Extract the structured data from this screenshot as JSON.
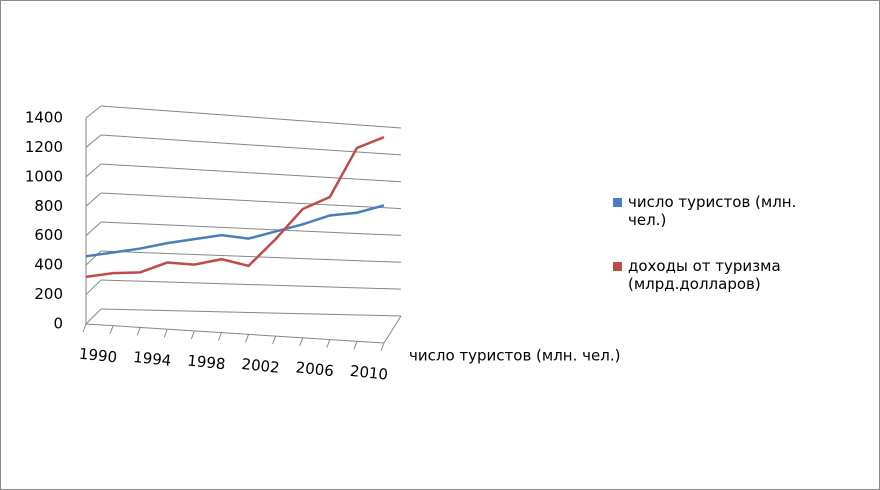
{
  "chart_data": {
    "type": "line",
    "categories": [
      "1990",
      null,
      "1994",
      null,
      "1998",
      null,
      "2002",
      null,
      "2006",
      null,
      "2010",
      null
    ],
    "series": [
      {
        "name": "число туристов (млн. чел.)",
        "color": "#4a7ebb",
        "values": [
          460,
          490,
          520,
          560,
          590,
          620,
          600,
          650,
          700,
          760,
          780,
          830
        ]
      },
      {
        "name": "доходы от туризма (млрд.долларов)",
        "color": "#be4b48",
        "values": [
          320,
          350,
          360,
          430,
          420,
          460,
          420,
          600,
          800,
          880,
          1200,
          1270
        ]
      }
    ],
    "z_axis_label": "число туристов (млн. чел.)",
    "ylim": [
      0,
      1400
    ],
    "yticks": [
      0,
      200,
      400,
      600,
      800,
      1000,
      1200,
      1400
    ],
    "grid": true,
    "legend": "right"
  }
}
